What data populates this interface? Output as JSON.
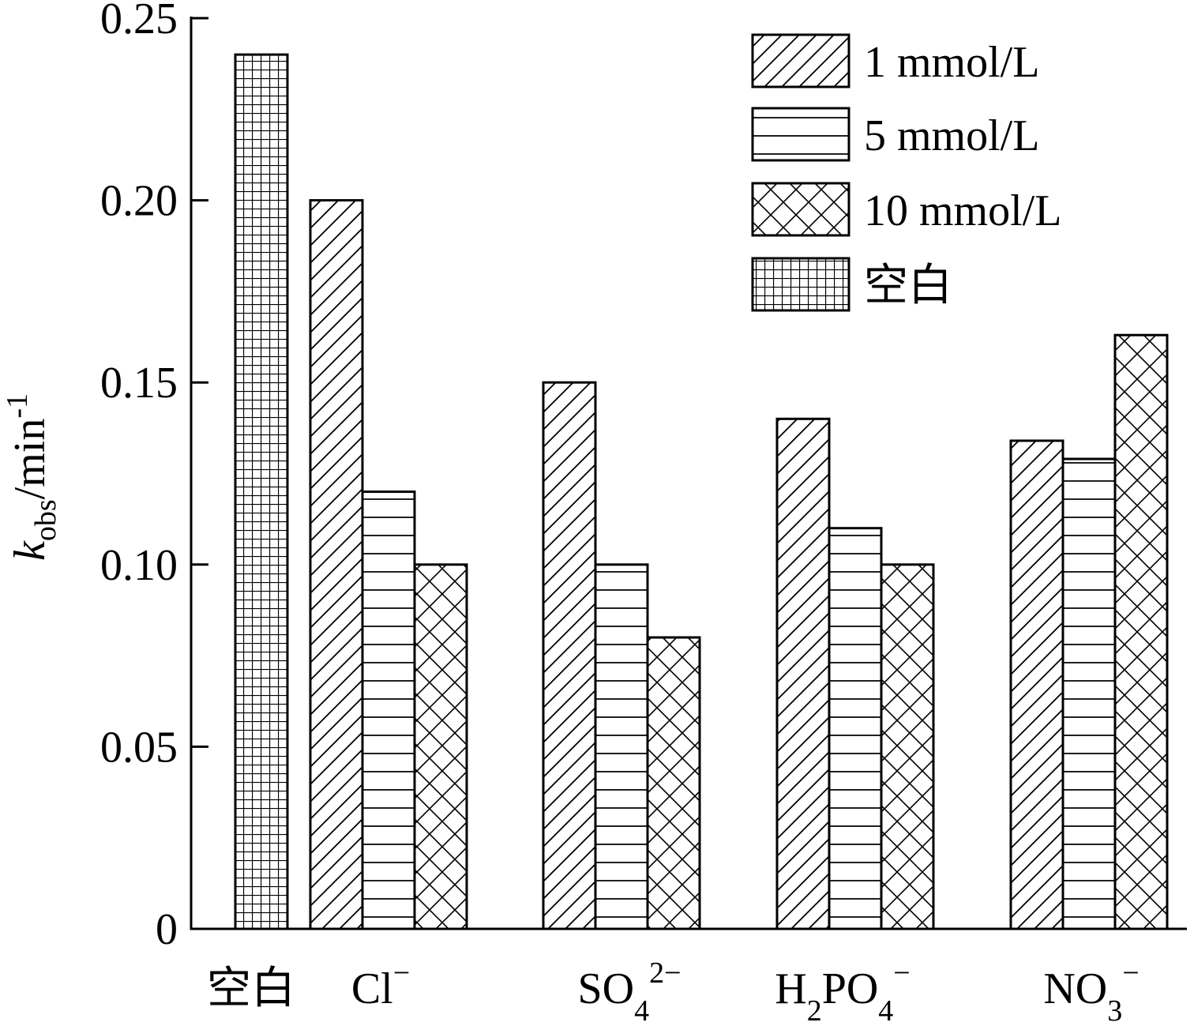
{
  "chart_data": {
    "type": "bar",
    "ylabel": "k_obs/min^-1",
    "ylabel_parts": {
      "main": "k",
      "sub": "obs",
      "unit": "/min",
      "sup": "-1"
    },
    "ylim": [
      0,
      0.25
    ],
    "yticks": [
      {
        "value": 0,
        "label": "0"
      },
      {
        "value": 0.05,
        "label": "0.05"
      },
      {
        "value": 0.1,
        "label": "0.10"
      },
      {
        "value": 0.15,
        "label": "0.15"
      },
      {
        "value": 0.2,
        "label": "0.20"
      },
      {
        "value": 0.25,
        "label": "0.25"
      }
    ],
    "categories": [
      {
        "key": "blank",
        "base": "空白",
        "parts": [
          {
            "t": "空白",
            "s": "n"
          }
        ]
      },
      {
        "key": "cl",
        "base": "Cl⁻",
        "parts": [
          {
            "t": "Cl",
            "s": "n"
          },
          {
            "t": "−",
            "s": "sup"
          }
        ]
      },
      {
        "key": "so4",
        "base": "SO₄²⁻",
        "parts": [
          {
            "t": "SO",
            "s": "n"
          },
          {
            "t": "4",
            "s": "sub"
          },
          {
            "t": "2−",
            "s": "sup"
          }
        ]
      },
      {
        "key": "h2po4",
        "base": "H₂PO₄⁻",
        "parts": [
          {
            "t": "H",
            "s": "n"
          },
          {
            "t": "2",
            "s": "sub"
          },
          {
            "t": "PO",
            "s": "n"
          },
          {
            "t": "4",
            "s": "sub"
          },
          {
            "t": "−",
            "s": "sup"
          }
        ]
      },
      {
        "key": "no3",
        "base": "NO₃⁻",
        "parts": [
          {
            "t": "NO",
            "s": "n"
          },
          {
            "t": "3",
            "s": "sub"
          },
          {
            "t": "−",
            "s": "sup"
          }
        ]
      }
    ],
    "series": [
      {
        "name": "1 mmol/L",
        "pattern": "diag",
        "values": [
          null,
          0.2,
          0.15,
          0.14,
          0.134
        ]
      },
      {
        "name": "5 mmol/L",
        "pattern": "hlines",
        "values": [
          null,
          0.12,
          0.1,
          0.11,
          0.129
        ]
      },
      {
        "name": "10 mmol/L",
        "pattern": "cross",
        "values": [
          null,
          0.1,
          0.08,
          0.1,
          0.163
        ]
      },
      {
        "name": "空白",
        "pattern": "grid",
        "values": [
          0.24,
          null,
          null,
          null,
          null
        ]
      }
    ],
    "legend_position": "top-right",
    "grid": false
  }
}
